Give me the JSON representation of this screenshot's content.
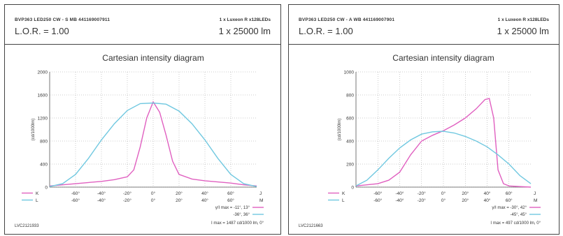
{
  "panels": [
    {
      "product_code": "BVP363 LED250 CW - S MB 441169007911",
      "lamp_spec": "1 x Luxeon R x128LEDs",
      "lor": "L.O.R. = 1.00",
      "flux": "1 x 25000 lm",
      "diagram_ref": "LVC2121933",
      "angle_line1": "γ/I max = -11°, 13°",
      "angle_line2": "-36°, 36°",
      "imax_line": "I max = 1487 cd/1000 lm, 0°",
      "colors": {
        "K": "#e060c0",
        "L": "#70c8e0"
      },
      "chart_data": {
        "type": "line",
        "title": "Cartesian intensity diagram",
        "ylabel": "(cd/1000lm)",
        "ylim": [
          0,
          2000
        ],
        "yticks": [
          0,
          400,
          800,
          1200,
          1600,
          2000
        ],
        "xlim": [
          -80,
          80
        ],
        "xticks": [
          "-60°",
          "-40°",
          "-20°",
          "0°",
          "20°",
          "40°",
          "60°"
        ],
        "x_axis_end_labels": [
          "J",
          "M"
        ],
        "series": [
          {
            "name": "K",
            "x": [
              -80,
              -70,
              -60,
              -50,
              -40,
              -30,
              -20,
              -15,
              -10,
              -5,
              0,
              5,
              10,
              15,
              20,
              30,
              40,
              50,
              60,
              70,
              80
            ],
            "values": [
              20,
              40,
              60,
              80,
              100,
              130,
              180,
              300,
              700,
              1200,
              1480,
              1300,
              900,
              450,
              220,
              140,
              110,
              90,
              70,
              40,
              20
            ]
          },
          {
            "name": "L",
            "x": [
              -80,
              -70,
              -60,
              -50,
              -40,
              -30,
              -20,
              -10,
              0,
              10,
              20,
              30,
              40,
              50,
              60,
              70,
              80
            ],
            "values": [
              10,
              60,
              220,
              500,
              820,
              1100,
              1330,
              1450,
              1460,
              1440,
              1320,
              1100,
              820,
              500,
              220,
              60,
              10
            ]
          }
        ],
        "legend_rows": [
          {
            "name": "K",
            "ticks": [
              "-60°",
              "-40°",
              "-20°",
              "0°",
              "20°",
              "40°",
              "60°"
            ]
          },
          {
            "name": "L",
            "ticks": [
              "-60°",
              "-40°",
              "-20°",
              "0°",
              "20°",
              "40°",
              "60°"
            ]
          }
        ]
      }
    },
    {
      "product_code": "BVP363 LED250 CW - A WB 441169007901",
      "lamp_spec": "1 x Luxeon R x128LEDs",
      "lor": "L.O.R. = 1.00",
      "flux": "1 x 25000 lm",
      "diagram_ref": "LVC2121663",
      "angle_line1": "γ/I max = -30°, 42°",
      "angle_line2": "-45°, 45°",
      "imax_line": "I max = 497 cd/1000 lm, 0°",
      "colors": {
        "K": "#e060c0",
        "L": "#70c8e0"
      },
      "chart_data": {
        "type": "line",
        "title": "Cartesian intensity diagram",
        "ylabel": "(cd/1000lm)",
        "ylim": [
          0,
          1000
        ],
        "yticks": [
          0,
          200,
          400,
          600,
          800,
          1000
        ],
        "xlim": [
          -80,
          80
        ],
        "xticks": [
          "-60°",
          "-40°",
          "-20°",
          "0°",
          "20°",
          "40°",
          "60°"
        ],
        "x_axis_end_labels": [
          "J",
          "M"
        ],
        "series": [
          {
            "name": "K",
            "x": [
              -80,
              -70,
              -60,
              -50,
              -40,
              -30,
              -20,
              -10,
              0,
              10,
              20,
              30,
              38,
              42,
              46,
              50,
              55,
              60,
              70,
              80
            ],
            "values": [
              10,
              20,
              30,
              60,
              130,
              280,
              400,
              450,
              490,
              540,
              600,
              680,
              760,
              770,
              600,
              150,
              30,
              10,
              5,
              0
            ]
          },
          {
            "name": "L",
            "x": [
              -80,
              -70,
              -60,
              -50,
              -40,
              -30,
              -20,
              -10,
              0,
              10,
              20,
              30,
              40,
              50,
              60,
              70,
              80
            ],
            "values": [
              10,
              60,
              150,
              250,
              340,
              410,
              460,
              480,
              485,
              470,
              440,
              400,
              350,
              280,
              200,
              100,
              30
            ]
          }
        ],
        "legend_rows": [
          {
            "name": "K",
            "ticks": [
              "-60°",
              "-40°",
              "-20°",
              "0°",
              "20°",
              "40°",
              "60°"
            ]
          },
          {
            "name": "L",
            "ticks": [
              "-60°",
              "-40°",
              "-20°",
              "0°",
              "20°",
              "40°",
              "60°"
            ]
          }
        ]
      }
    }
  ]
}
